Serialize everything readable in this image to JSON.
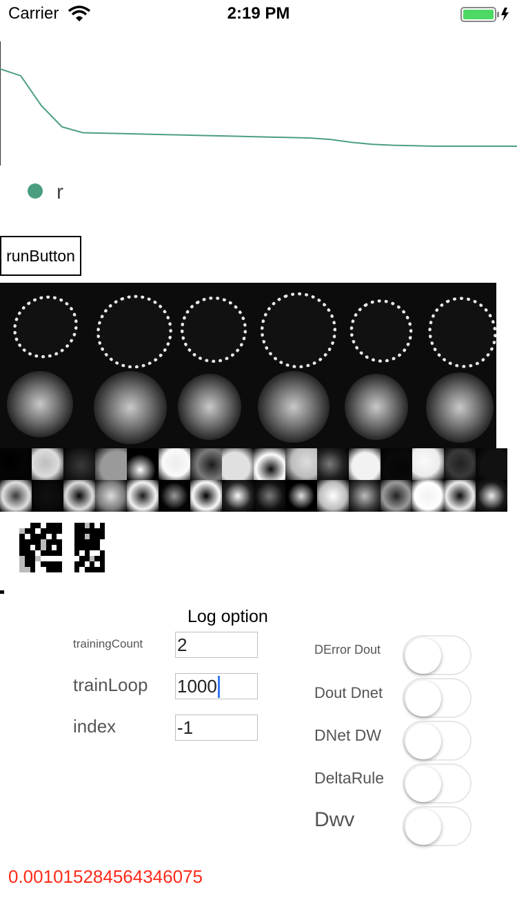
{
  "status_bar": {
    "carrier": "Carrier",
    "time": "2:19 PM",
    "wifi_icon": "wifi-icon",
    "battery_icon": "battery-charging-icon"
  },
  "chart_data": {
    "type": "line",
    "title": "",
    "xlabel": "",
    "ylabel": "",
    "series": [
      {
        "name": "r",
        "color": "#4a9e7f",
        "values": [
          1.0,
          0.93,
          0.62,
          0.4,
          0.34,
          0.335,
          0.33,
          0.325,
          0.32,
          0.315,
          0.31,
          0.305,
          0.3,
          0.295,
          0.29,
          0.285,
          0.27,
          0.24,
          0.22,
          0.21,
          0.205,
          0.2,
          0.2,
          0.2,
          0.2,
          0.2
        ]
      }
    ],
    "legend": "bottom-left",
    "grid": false
  },
  "legend_label": "r",
  "run_button_label": "runButton",
  "log_option": {
    "title": "Log option",
    "fields": [
      {
        "label": "trainingCount",
        "value": "2"
      },
      {
        "label": "trainLoop",
        "value": "1000"
      },
      {
        "label": "index",
        "value": "-1"
      }
    ],
    "toggles": [
      {
        "label": "DError Dout",
        "on": false
      },
      {
        "label": "Dout Dnet",
        "on": false
      },
      {
        "label": "DNet DW",
        "on": false
      },
      {
        "label": "DeltaRule",
        "on": false
      },
      {
        "label": "Dwv",
        "on": false
      }
    ]
  },
  "error_value": "0.001015284564346075",
  "colors": {
    "accent": "#4a9e7f",
    "error": "#ff2a1a",
    "cursor": "#3478f6"
  }
}
